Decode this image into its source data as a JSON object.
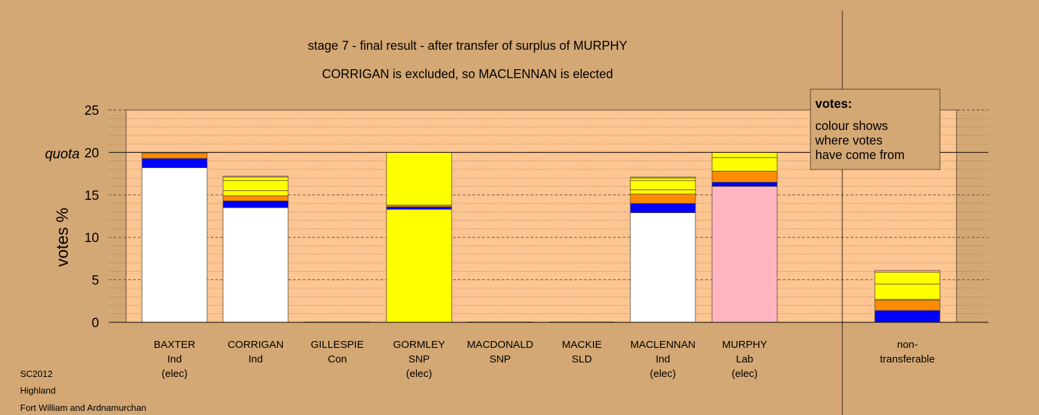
{
  "chart_data": {
    "type": "bar",
    "stacked": true,
    "title": "stage 7 - final result - after transfer of surplus of MURPHY",
    "subtitle": "CORRIGAN is excluded, so MACLENNAN is elected",
    "ylabel": "votes %",
    "quota_label": "quota",
    "quota_value": 20,
    "ylim": [
      0,
      25
    ],
    "yticks": [
      0,
      5,
      10,
      15,
      20,
      25
    ],
    "grid": "dashed major, dotted minor",
    "categories": [
      {
        "name": "BAXTER",
        "party": "Ind",
        "status": "(elec)"
      },
      {
        "name": "CORRIGAN",
        "party": "Ind",
        "status": ""
      },
      {
        "name": "GILLESPIE",
        "party": "Con",
        "status": ""
      },
      {
        "name": "GORMLEY",
        "party": "SNP",
        "status": "(elec)"
      },
      {
        "name": "MACDONALD",
        "party": "SNP",
        "status": ""
      },
      {
        "name": "MACKIE",
        "party": "SLD",
        "status": ""
      },
      {
        "name": "MACLENNAN",
        "party": "Ind",
        "status": "(elec)"
      },
      {
        "name": "MURPHY",
        "party": "Lab",
        "status": "(elec)"
      }
    ],
    "nontransferable_label": [
      "non-",
      "transferable"
    ],
    "bars": [
      {
        "category": "BAXTER",
        "segments": [
          {
            "color": "#ffffff",
            "value": 18.2
          },
          {
            "color": "#0000ff",
            "value": 1.1
          },
          {
            "color": "#ff8c00",
            "value": 0.6
          },
          {
            "color": "#ffb6c1",
            "value": 0.1
          }
        ]
      },
      {
        "category": "CORRIGAN",
        "segments": [
          {
            "color": "#ffffff",
            "value": 13.5
          },
          {
            "color": "#0000ff",
            "value": 0.8
          },
          {
            "color": "#ff8c00",
            "value": 0.6
          },
          {
            "color": "#ffff00",
            "value": 0.6
          },
          {
            "color": "#ffff00",
            "value": 1.2
          },
          {
            "color": "#ffff00",
            "value": 0.4
          },
          {
            "color": "#ffb6c1",
            "value": 0.1
          }
        ]
      },
      {
        "category": "GILLESPIE",
        "segments": []
      },
      {
        "category": "GORMLEY",
        "segments": [
          {
            "color": "#ffff00",
            "value": 13.3
          },
          {
            "color": "#0000ff",
            "value": 0.3
          },
          {
            "color": "#ff8c00",
            "value": 0.2
          },
          {
            "color": "#ffff00",
            "value": 6.2
          }
        ]
      },
      {
        "category": "MACDONALD",
        "segments": []
      },
      {
        "category": "MACKIE",
        "segments": []
      },
      {
        "category": "MACLENNAN",
        "segments": [
          {
            "color": "#ffffff",
            "value": 12.9
          },
          {
            "color": "#0000ff",
            "value": 1.1
          },
          {
            "color": "#ff8c00",
            "value": 1.1
          },
          {
            "color": "#ffff00",
            "value": 0.5
          },
          {
            "color": "#ffff00",
            "value": 1.1
          },
          {
            "color": "#ffff00",
            "value": 0.3
          },
          {
            "color": "#ffb6c1",
            "value": 0.1
          }
        ]
      },
      {
        "category": "MURPHY",
        "segments": [
          {
            "color": "#ffb6c1",
            "value": 16.0
          },
          {
            "color": "#0000ff",
            "value": 0.5
          },
          {
            "color": "#ff8c00",
            "value": 1.3
          },
          {
            "color": "#ffff00",
            "value": 1.6
          },
          {
            "color": "#ffff00",
            "value": 0.6
          }
        ]
      },
      {
        "category": "non-transferable",
        "segments": [
          {
            "color": "#0000ff",
            "value": 1.4
          },
          {
            "color": "#ff8c00",
            "value": 1.2
          },
          {
            "color": "#ffff00",
            "value": 0.1
          },
          {
            "color": "#ffff00",
            "value": 1.8
          },
          {
            "color": "#ffff00",
            "value": 1.4
          },
          {
            "color": "#ffb6c1",
            "value": 0.2
          }
        ]
      }
    ],
    "legend": {
      "position": "top-right",
      "title": "votes:",
      "lines": [
        "colour shows",
        "where votes",
        "have come from"
      ]
    }
  },
  "footer": {
    "line1": "SC2012",
    "line2": "Highland",
    "line3": "Fort William and Ardnamurchan"
  },
  "colors": {
    "background": "#d4a874",
    "plot_area": "#fcc591",
    "legend_box": "#d4a874"
  }
}
